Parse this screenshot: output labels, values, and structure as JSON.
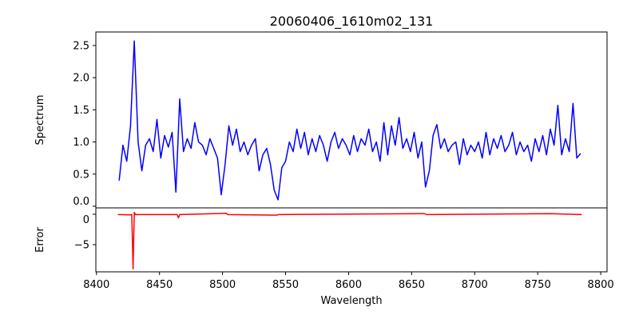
{
  "chart_data": [
    {
      "type": "line",
      "title": "20060406_1610m02_131",
      "xlabel": "",
      "ylabel": "Spectrum",
      "xlim": [
        8399.5,
        8805
      ],
      "ylim": [
        -0.025,
        2.71
      ],
      "yticks": [
        "0.0",
        "0.5",
        "1.0",
        "1.5",
        "2.0",
        "2.5"
      ],
      "ytick_values": [
        0,
        0.5,
        1.0,
        1.5,
        2.0,
        2.5
      ],
      "color": "#0000ff",
      "series": [
        {
          "name": "Spectrum",
          "x_start": 8418,
          "x_step": 3,
          "values": [
            0.4,
            0.95,
            0.7,
            1.25,
            2.57,
            1.0,
            0.55,
            0.95,
            1.05,
            0.85,
            1.35,
            0.75,
            1.1,
            0.92,
            1.15,
            0.22,
            1.67,
            0.85,
            1.05,
            0.9,
            1.3,
            1.0,
            0.95,
            0.8,
            1.05,
            0.9,
            0.75,
            0.18,
            0.65,
            1.25,
            0.95,
            1.2,
            0.85,
            1.0,
            0.8,
            0.95,
            1.05,
            0.55,
            0.8,
            0.9,
            0.65,
            0.25,
            0.1,
            0.6,
            0.7,
            1.0,
            0.85,
            1.2,
            0.9,
            1.15,
            0.8,
            1.05,
            0.85,
            1.1,
            0.95,
            0.7,
            1.0,
            1.15,
            0.9,
            1.05,
            0.95,
            0.8,
            1.1,
            0.85,
            1.05,
            0.95,
            1.2,
            0.85,
            1.0,
            0.7,
            1.3,
            0.8,
            1.25,
            0.95,
            1.38,
            0.9,
            1.05,
            0.85,
            1.15,
            0.75,
            1.0,
            0.3,
            0.55,
            1.1,
            1.27,
            0.9,
            1.05,
            0.85,
            0.95,
            1.0,
            0.65,
            1.05,
            0.8,
            0.95,
            0.85,
            1.0,
            0.75,
            1.15,
            0.8,
            1.05,
            0.9,
            1.1,
            0.85,
            0.95,
            1.15,
            0.8,
            1.0,
            0.85,
            0.95,
            0.7,
            1.05,
            0.85,
            1.1,
            0.8,
            1.2,
            0.95,
            1.57,
            0.8,
            1.05,
            0.85,
            1.6,
            0.75,
            0.82
          ]
        }
      ]
    },
    {
      "type": "line",
      "xlabel": "Wavelength",
      "ylabel": "Error",
      "xlim": [
        8399.5,
        8805
      ],
      "ylim": [
        -9.47,
        1.05
      ],
      "yticks": [
        "0",
        "−5"
      ],
      "ytick_values": [
        0,
        -5
      ],
      "xticks": [
        "8400",
        "8450",
        "8500",
        "8550",
        "8600",
        "8650",
        "8700",
        "8750",
        "8800"
      ],
      "xtick_values": [
        8400,
        8450,
        8500,
        8550,
        8600,
        8650,
        8700,
        8750,
        8800
      ],
      "color": "#ff0000",
      "series": [
        {
          "name": "Error",
          "x": [
            8417,
            8427,
            8428,
            8429,
            8430,
            8431,
            8464,
            8465,
            8466,
            8503,
            8504,
            8543,
            8544,
            8660,
            8662,
            8760,
            8785
          ],
          "y": [
            -0.05,
            -0.1,
            -0.05,
            -9.0,
            0.3,
            -0.05,
            -0.05,
            -0.6,
            -0.05,
            0.15,
            -0.05,
            -0.15,
            -0.05,
            0.1,
            -0.05,
            0.1,
            -0.05
          ]
        }
      ]
    }
  ]
}
